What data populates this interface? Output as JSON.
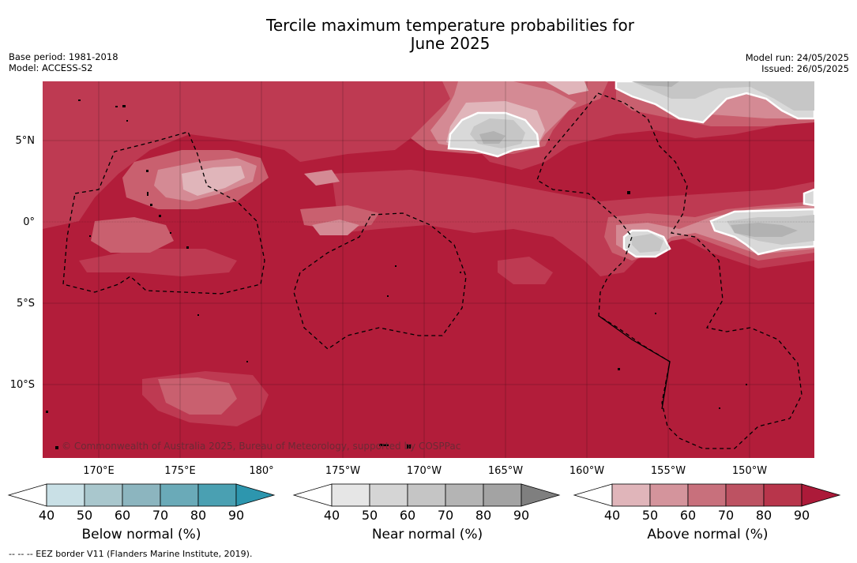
{
  "title_line1": "Tercile maximum temperature probabilities for",
  "title_line2": "June 2025",
  "meta_left": {
    "base_period": "Base period: 1981-2018",
    "model": "Model: ACCESS-S2"
  },
  "meta_right": {
    "model_run": "Model run: 24/05/2025",
    "issued": "Issued: 26/05/2025"
  },
  "copyright": "© Commonwealth of Australia 2025, Bureau of Meteorology, supported by COSPPac",
  "footer": "--  --  -- EEZ border V11 (Flanders Marine Institute, 2019).",
  "map": {
    "background_color": "#b21d3a",
    "lat_labels": [
      "5°N",
      "0°",
      "5°S",
      "10°S"
    ],
    "lon_labels": [
      "170°E",
      "175°E",
      "180°",
      "175°W",
      "170°W",
      "165°W",
      "160°W",
      "155°W",
      "150°W"
    ],
    "layers": [
      {
        "category": "Above normal",
        "level": 80,
        "color": "#be3a52"
      },
      {
        "category": "Above normal",
        "level": 70,
        "color": "#c9606f"
      },
      {
        "category": "Above normal",
        "level": 60,
        "color": "#d48a94"
      },
      {
        "category": "Above normal",
        "level": 50,
        "color": "#e0b5ba"
      },
      {
        "category": "Near normal",
        "level": 50,
        "color": "#d9d9d9"
      },
      {
        "category": "Near normal",
        "level": 60,
        "color": "#c6c6c6"
      },
      {
        "category": "Near normal",
        "level": 70,
        "color": "#b2b2b2"
      }
    ]
  },
  "colorbars": [
    {
      "label": "Below normal (%)",
      "ticks": [
        "40",
        "50",
        "60",
        "70",
        "80",
        "90"
      ],
      "colors": [
        "#ffffff",
        "#c9e0e6",
        "#a9c7cd",
        "#8cb5bf",
        "#6aaab8",
        "#4aa0b2",
        "#2d96ae"
      ]
    },
    {
      "label": "Near normal (%)",
      "ticks": [
        "40",
        "50",
        "60",
        "70",
        "80",
        "90"
      ],
      "colors": [
        "#ffffff",
        "#e6e6e6",
        "#d5d5d5",
        "#c5c5c5",
        "#b4b4b4",
        "#a3a3a3",
        "#7f7f7f"
      ]
    },
    {
      "label": "Above normal (%)",
      "ticks": [
        "40",
        "50",
        "60",
        "70",
        "80",
        "90"
      ],
      "colors": [
        "#ffffff",
        "#e0b5ba",
        "#d4949c",
        "#c8707c",
        "#bd5262",
        "#b8354b",
        "#ac1a39"
      ]
    }
  ]
}
